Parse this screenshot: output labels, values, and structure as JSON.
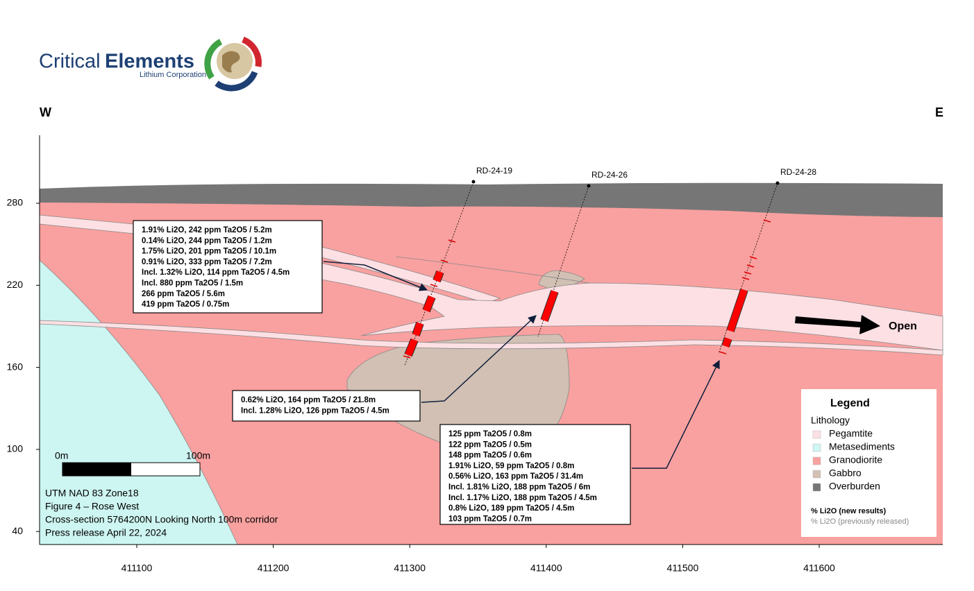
{
  "header": {
    "logo_light": "Critical",
    "logo_bold": "Elements",
    "logo_sub": "Lithium Corporation"
  },
  "compass": {
    "west": "W",
    "east": "E"
  },
  "axes": {
    "yticks": [
      280,
      220,
      160,
      100,
      40
    ],
    "xticks": [
      411100,
      411200,
      411300,
      411400,
      411500,
      411600
    ]
  },
  "drill_holes": [
    {
      "label": "RD-24-19"
    },
    {
      "label": "RD-24-26"
    },
    {
      "label": "RD-24-28"
    }
  ],
  "callouts": [
    {
      "lines": [
        "1.91% Li2O, 242 ppm Ta2O5 / 5.2m",
        "0.14% Li2O, 244 ppm Ta2O5 / 1.2m",
        "1.75% Li2O, 201 ppm Ta2O5 / 10.1m",
        "0.91% Li2O, 333 ppm Ta2O5 / 7.2m",
        "Incl. 1.32% Li2O, 114 ppm Ta2O5 / 4.5m",
        "Incl. 880 ppm Ta2O5 / 1.5m",
        "266 ppm Ta2O5 / 5.6m",
        "419 ppm Ta2O5 / 0.75m"
      ]
    },
    {
      "lines": [
        "0.62% Li2O, 164 ppm Ta2O5 / 21.8m",
        "Incl. 1.28% Li2O, 126 ppm Ta2O5 / 4.5m"
      ]
    },
    {
      "lines": [
        "125 ppm Ta2O5 / 0.8m",
        "122 ppm Ta2O5 / 0.5m",
        "148 ppm Ta2O5 / 0.6m",
        "1.91% Li2O, 59 ppm Ta2O5 / 0.8m",
        "0.56% Li2O, 163 ppm Ta2O5 / 31.4m",
        "Incl. 1.81% Li2O, 188 ppm Ta2O5 / 6m",
        "Incl. 1.17% Li2O, 188 ppm Ta2O5 / 4.5m",
        "0.8% Li2O, 189 ppm Ta2O5 / 4.5m",
        "103 ppm Ta2O5 / 0.7m"
      ]
    }
  ],
  "open_label": "Open",
  "scale_bar": {
    "start": "0m",
    "end": "100m"
  },
  "info": [
    "UTM NAD 83 Zone18",
    "Figure 4 – Rose West",
    "Cross-section 5764200N Looking North 100m corridor",
    "Press release April 22, 2024"
  ],
  "legend": {
    "title": "Legend",
    "subtitle": "Lithology",
    "items": [
      {
        "label": "Pegamtite",
        "color": "#fde0e4"
      },
      {
        "label": "Metasediments",
        "color": "#cdf5f1"
      },
      {
        "label": "Granodiorite",
        "color": "#f9a1a0"
      },
      {
        "label": "Gabbro",
        "color": "#d1c0b3"
      },
      {
        "label": "Overburden",
        "color": "#767676"
      }
    ],
    "new_results": "% Li2O (new results)",
    "previous": "% Li2O (previously released)"
  }
}
